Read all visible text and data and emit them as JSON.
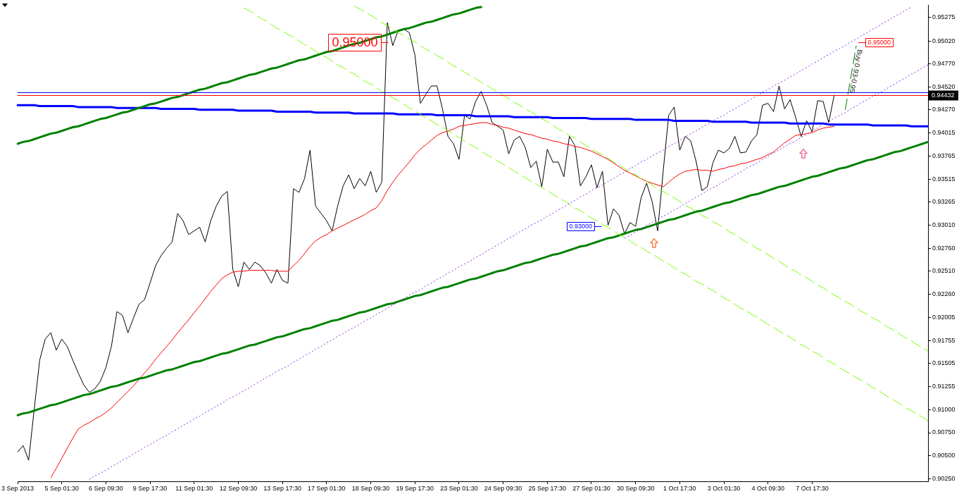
{
  "chart_data": {
    "type": "line",
    "marker": "none",
    "categories": [
      "3 Sep 2013",
      null,
      null,
      null,
      null,
      null,
      null,
      null,
      "5 Sep 01:30",
      null,
      null,
      null,
      null,
      null,
      null,
      null,
      "6 Sep 09:30",
      null,
      null,
      null,
      null,
      null,
      null,
      null,
      "9 Sep 17:30",
      null,
      null,
      null,
      null,
      null,
      null,
      null,
      "11 Sep 01:30",
      null,
      null,
      null,
      null,
      null,
      null,
      null,
      "12 Sep 09:30",
      null,
      null,
      null,
      null,
      null,
      null,
      null,
      "13 Sep 17:30",
      null,
      null,
      null,
      null,
      null,
      null,
      null,
      "17 Sep 01:30",
      null,
      null,
      null,
      null,
      null,
      null,
      null,
      "18 Sep 09:30",
      null,
      null,
      null,
      null,
      null,
      null,
      null,
      "19 Sep 17:30",
      null,
      null,
      null,
      null,
      null,
      null,
      null,
      "23 Sep 01:30",
      null,
      null,
      null,
      null,
      null,
      null,
      null,
      "24 Sep 09:30",
      null,
      null,
      null,
      null,
      null,
      null,
      null,
      "25 Sep 17:30",
      null,
      null,
      null,
      null,
      null,
      null,
      null,
      "27 Sep 01:30",
      null,
      null,
      null,
      null,
      null,
      null,
      null,
      "30 Sep 09:30",
      null,
      null,
      null,
      null,
      null,
      null,
      null,
      "1 Oct 17:30",
      null,
      null,
      null,
      null,
      null,
      null,
      null,
      "3 Oct 01:30",
      null,
      null,
      null,
      null,
      null,
      null,
      null,
      "4 Oct 09:30",
      null,
      null,
      null,
      null,
      null,
      null,
      null,
      "7 Oct 17:30",
      null,
      null,
      null,
      null,
      null,
      null,
      null,
      null,
      null,
      null,
      null,
      null,
      null,
      null,
      null,
      null,
      null,
      null,
      null,
      null,
      null
    ],
    "ylim": [
      0.9022,
      0.9541
    ],
    "yticks": [
      0.95275,
      {
        "value": 0.9502,
        "label": "0.95020"
      },
      {
        "value": 0.9477,
        "label": "0.94770"
      },
      {
        "value": 0.9452,
        "label": "0.94520"
      },
      {
        "value": 0.9427,
        "label": "0.94270"
      },
      0.94015,
      0.93765,
      0.93515,
      0.93265,
      {
        "value": 0.9301,
        "label": "0.93010"
      },
      {
        "value": 0.9276,
        "label": "0.92760"
      },
      {
        "value": 0.9251,
        "label": "0.92510"
      },
      {
        "value": 0.9226,
        "label": "0.92260"
      },
      0.92005,
      0.91755,
      0.91505,
      0.91255,
      {
        "value": 0.91,
        "label": "0.91000"
      },
      {
        "value": 0.9075,
        "label": "0.90750"
      },
      {
        "value": 0.905,
        "label": "0.90500"
      },
      {
        "value": 0.9025,
        "label": "0.90250"
      }
    ],
    "series": [
      {
        "color": "#000000",
        "values": [
          0.9054,
          0.9061,
          0.9045,
          0.91,
          0.9154,
          0.9177,
          0.9184,
          0.9165,
          0.9177,
          0.9169,
          0.9154,
          0.914,
          0.9127,
          0.9119,
          0.9123,
          0.9131,
          0.9146,
          0.9169,
          0.9207,
          0.9203,
          0.9184,
          0.92,
          0.9215,
          0.922,
          0.9238,
          0.9257,
          0.9268,
          0.9276,
          0.9283,
          0.9314,
          0.9306,
          0.9291,
          0.9295,
          0.9299,
          0.9283,
          0.9306,
          0.9322,
          0.9333,
          0.9338,
          0.9253,
          0.9234,
          0.9261,
          0.9253,
          0.9261,
          0.9257,
          0.9249,
          0.9238,
          0.9253,
          0.9241,
          0.9238,
          0.9341,
          0.9337,
          0.9352,
          0.9383,
          0.9322,
          0.9314,
          0.9306,
          0.9295,
          0.9322,
          0.9344,
          0.9356,
          0.9341,
          0.9352,
          0.9344,
          0.936,
          0.9337,
          0.9348,
          0.9522,
          0.9497,
          0.9514,
          0.9515,
          0.9511,
          0.9487,
          0.9434,
          0.9444,
          0.9453,
          0.9453,
          0.9428,
          0.9398,
          0.939,
          0.9373,
          0.9421,
          0.9417,
          0.9436,
          0.9447,
          0.9432,
          0.9413,
          0.9409,
          0.9405,
          0.9379,
          0.9394,
          0.9398,
          0.9386,
          0.9364,
          0.9371,
          0.9343,
          0.9384,
          0.937,
          0.937,
          0.9354,
          0.9398,
          0.9388,
          0.9344,
          0.9354,
          0.9367,
          0.9342,
          0.936,
          0.9301,
          0.9319,
          0.9312,
          0.9292,
          0.9304,
          0.93,
          0.9331,
          0.9347,
          0.9327,
          0.9295,
          0.936,
          0.9421,
          0.943,
          0.9383,
          0.9398,
          0.9393,
          0.937,
          0.9339,
          0.9343,
          0.9369,
          0.9383,
          0.938,
          0.9385,
          0.9398,
          0.938,
          0.9381,
          0.9393,
          0.94,
          0.9432,
          0.9434,
          0.9425,
          0.9453,
          0.9428,
          0.9438,
          0.9419,
          0.9398,
          0.9415,
          0.9403,
          0.9437,
          0.9436,
          0.9413,
          0.9443,
          null,
          null,
          null,
          null,
          null,
          null,
          null,
          null,
          null,
          null,
          null,
          null,
          null,
          null,
          null,
          null,
          null
        ]
      },
      {
        "color": "#ff0000",
        "values": [
          null,
          null,
          null,
          null,
          null,
          null,
          0.9026,
          0.9036,
          0.9047,
          0.9058,
          0.9069,
          0.9079,
          0.9083,
          0.9086,
          0.909,
          0.9093,
          0.9097,
          0.9102,
          0.9108,
          0.9114,
          0.912,
          0.9126,
          0.9133,
          0.914,
          0.9147,
          0.9155,
          0.9162,
          0.9169,
          0.9176,
          0.9184,
          0.9191,
          0.9198,
          0.9206,
          0.9213,
          0.9221,
          0.9229,
          0.9236,
          0.9243,
          0.9247,
          0.925,
          0.9251,
          0.9251,
          0.9252,
          0.9252,
          0.9252,
          0.9252,
          0.9252,
          0.9251,
          0.9251,
          0.9251,
          0.9257,
          0.9263,
          0.927,
          0.9278,
          0.9284,
          0.9288,
          0.9291,
          0.9295,
          0.9298,
          0.9301,
          0.9304,
          0.9307,
          0.931,
          0.9313,
          0.9317,
          0.932,
          0.9328,
          0.9339,
          0.9348,
          0.9356,
          0.9363,
          0.937,
          0.9378,
          0.9384,
          0.9389,
          0.9394,
          0.9399,
          0.9402,
          0.9404,
          0.9406,
          0.9409,
          0.941,
          0.9411,
          0.9412,
          0.9413,
          0.9413,
          0.9411,
          0.941,
          0.9408,
          0.9407,
          0.9405,
          0.9403,
          0.9401,
          0.94,
          0.9398,
          0.9396,
          0.9395,
          0.9393,
          0.9392,
          0.939,
          0.9389,
          0.9387,
          0.9386,
          0.9384,
          0.9382,
          0.9379,
          0.9376,
          0.9373,
          0.9369,
          0.9365,
          0.9361,
          0.9358,
          0.9355,
          0.9352,
          0.9349,
          0.9347,
          0.9345,
          0.9343,
          0.9348,
          0.9353,
          0.9357,
          0.936,
          0.9361,
          0.9362,
          0.9361,
          0.9361,
          0.936,
          0.9362,
          0.9363,
          0.9365,
          0.9366,
          0.9368,
          0.9369,
          0.9371,
          0.9373,
          0.9375,
          0.9378,
          0.9381,
          0.9386,
          0.9391,
          0.9395,
          0.9399,
          0.94,
          0.9401,
          0.9402,
          0.9405,
          0.9407,
          0.9408,
          0.9409,
          null,
          null,
          null,
          null,
          null,
          null,
          null,
          null,
          null,
          null,
          null,
          null,
          null,
          null,
          null,
          null,
          null
        ]
      },
      {
        "type": "line",
        "color": "#0000ff",
        "values": [
          0.9432,
          0.9432,
          0.9432,
          0.9432,
          0.9431,
          0.9431,
          0.9431,
          0.9431,
          0.9431,
          0.9431,
          0.9431,
          0.943,
          0.943,
          0.943,
          0.943,
          0.943,
          0.943,
          0.943,
          0.9429,
          0.9429,
          0.9429,
          0.9429,
          0.9429,
          0.9429,
          0.9429,
          0.9429,
          0.9428,
          0.9428,
          0.9428,
          0.9428,
          0.9428,
          0.9428,
          0.9428,
          0.9427,
          0.9427,
          0.9427,
          0.9427,
          0.9427,
          0.9427,
          0.9427,
          0.9426,
          0.9426,
          0.9426,
          0.9426,
          0.9426,
          0.9426,
          0.9426,
          0.9425,
          0.9425,
          0.9425,
          0.9425,
          0.9425,
          0.9425,
          0.9425,
          0.9424,
          0.9424,
          0.9424,
          0.9424,
          0.9424,
          0.9424,
          0.9424,
          0.9423,
          0.9423,
          0.9423,
          0.9423,
          0.9423,
          0.9423,
          0.9423,
          0.9423,
          0.9422,
          0.9422,
          0.9422,
          0.9422,
          0.9422,
          0.9422,
          0.9422,
          0.9421,
          0.9421,
          0.9421,
          0.9421,
          0.9421,
          0.9421,
          0.9421,
          0.942,
          0.942,
          0.942,
          0.942,
          0.942,
          0.942,
          0.942,
          0.9419,
          0.9419,
          0.9419,
          0.9419,
          0.9419,
          0.9419,
          0.9419,
          0.9418,
          0.9418,
          0.9418,
          0.9418,
          0.9418,
          0.9418,
          0.9418,
          0.9417,
          0.9417,
          0.9417,
          0.9417,
          0.9417,
          0.9417,
          0.9417,
          0.9417,
          0.9416,
          0.9416,
          0.9416,
          0.9416,
          0.9416,
          0.9416,
          0.9416,
          0.9415,
          0.9415,
          0.9415,
          0.9415,
          0.9415,
          0.9415,
          0.9415,
          0.9414,
          0.9414,
          0.9414,
          0.9414,
          0.9414,
          0.9414,
          0.9414,
          0.9413,
          0.9413,
          0.9413,
          0.9413,
          0.9413,
          0.9413,
          0.9413,
          0.9412,
          0.9412,
          0.9412,
          0.9412,
          0.9412,
          0.9412,
          0.9412,
          0.9411,
          0.9411,
          0.9411,
          0.9411,
          0.9411,
          0.9411,
          0.9411,
          0.9411,
          0.941,
          0.941,
          0.941,
          0.941,
          0.941,
          0.941,
          0.941,
          0.9409,
          0.9409,
          0.9409,
          0.9409
        ]
      },
      {
        "type": "line",
        "color": "#008000",
        "values": [
          0.939,
          0.9392,
          0.9393,
          0.9395,
          0.9397,
          0.9399,
          0.9401,
          0.9402,
          0.9404,
          0.9406,
          0.9408,
          0.9409,
          0.9411,
          0.9413,
          0.9415,
          0.9417,
          0.9418,
          0.942,
          0.9422,
          0.9424,
          0.9425,
          0.9427,
          0.9429,
          0.9431,
          0.9433,
          0.9434,
          0.9436,
          0.9438,
          0.944,
          0.9441,
          0.9443,
          0.9445,
          0.9447,
          0.9449,
          0.945,
          0.9452,
          0.9454,
          0.9456,
          0.9457,
          0.9459,
          0.9461,
          0.9463,
          0.9465,
          0.9466,
          0.9468,
          0.947,
          0.9472,
          0.9473,
          0.9475,
          0.9477,
          0.9479,
          0.9481,
          0.9482,
          0.9484,
          0.9486,
          0.9488,
          0.949,
          0.9491,
          0.9493,
          0.9495,
          0.9497,
          0.9499,
          0.95,
          0.9502,
          0.9504,
          0.9506,
          0.9507,
          0.9509,
          0.9511,
          0.9513,
          0.9515,
          0.9516,
          0.9518,
          0.952,
          0.9522,
          0.9523,
          0.9525,
          0.9527,
          0.9529,
          0.9531,
          0.9532,
          0.9534,
          0.9536,
          0.9538,
          0.9539,
          null,
          null,
          null,
          null,
          null,
          null,
          null,
          null,
          null,
          null,
          null,
          null,
          null,
          null,
          null,
          null,
          null,
          null,
          null,
          null,
          null,
          null,
          null,
          null,
          null,
          null,
          null,
          null,
          null,
          null,
          null,
          null,
          null,
          null,
          null,
          null,
          null,
          null,
          null,
          null,
          null,
          null,
          null,
          null,
          null,
          null,
          null,
          null,
          null,
          null,
          null,
          null,
          null,
          null,
          null,
          null,
          null,
          null,
          null,
          null,
          null,
          null,
          null,
          null,
          null,
          null,
          null,
          null,
          null,
          null,
          null,
          null,
          null,
          null,
          null,
          null,
          null,
          null,
          null,
          null,
          null
        ]
      },
      {
        "type": "line",
        "color": "#008000",
        "values": [
          0.9094,
          0.9096,
          0.9097,
          0.9099,
          0.9101,
          0.9103,
          0.9105,
          0.9106,
          0.9108,
          0.911,
          0.9112,
          0.9114,
          0.9116,
          0.9117,
          0.9119,
          0.9121,
          0.9123,
          0.9125,
          0.9126,
          0.9128,
          0.913,
          0.9132,
          0.9134,
          0.9135,
          0.9137,
          0.9139,
          0.9141,
          0.9143,
          0.9144,
          0.9146,
          0.9148,
          0.915,
          0.9152,
          0.9153,
          0.9155,
          0.9157,
          0.9159,
          0.9161,
          0.9162,
          0.9164,
          0.9166,
          0.9168,
          0.917,
          0.9171,
          0.9173,
          0.9175,
          0.9177,
          0.9179,
          0.918,
          0.9182,
          0.9184,
          0.9186,
          0.9188,
          0.9189,
          0.9191,
          0.9193,
          0.9195,
          0.9197,
          0.9198,
          0.92,
          0.9202,
          0.9204,
          0.9206,
          0.9207,
          0.9209,
          0.9211,
          0.9213,
          0.9215,
          0.9216,
          0.9218,
          0.922,
          0.9222,
          0.9224,
          0.9225,
          0.9227,
          0.9229,
          0.9231,
          0.9233,
          0.9234,
          0.9236,
          0.9238,
          0.924,
          0.9242,
          0.9243,
          0.9245,
          0.9247,
          0.9249,
          0.9251,
          0.9252,
          0.9254,
          0.9256,
          0.9258,
          0.926,
          0.9261,
          0.9263,
          0.9265,
          0.9267,
          0.9269,
          0.927,
          0.9272,
          0.9274,
          0.9276,
          0.9278,
          0.9279,
          0.9281,
          0.9283,
          0.9285,
          0.9287,
          0.9288,
          0.929,
          0.9292,
          0.9294,
          0.9296,
          0.9297,
          0.9299,
          0.9301,
          0.9303,
          0.9305,
          0.9307,
          0.9308,
          0.931,
          0.9312,
          0.9314,
          0.9316,
          0.9317,
          0.9319,
          0.9321,
          0.9323,
          0.9325,
          0.9326,
          0.9328,
          0.933,
          0.9332,
          0.9334,
          0.9335,
          0.9337,
          0.9339,
          0.9341,
          0.9343,
          0.9344,
          0.9346,
          0.9348,
          0.935,
          0.9352,
          0.9354,
          0.9355,
          0.9357,
          0.9359,
          0.9361,
          0.9363,
          0.9364,
          0.9366,
          0.9368,
          0.937,
          0.9372,
          0.9373,
          0.9375,
          0.9377,
          0.9379,
          0.9381,
          0.9382,
          0.9384,
          0.9386,
          0.9388,
          0.939,
          0.9392
        ]
      },
      {
        "type": "line",
        "color": "#7cfc00",
        "line_style": "dashed",
        "values": [
          null,
          null,
          null,
          null,
          null,
          null,
          null,
          null,
          null,
          null,
          null,
          null,
          null,
          null,
          null,
          null,
          null,
          null,
          null,
          null,
          null,
          null,
          null,
          null,
          null,
          null,
          null,
          null,
          null,
          null,
          null,
          null,
          null,
          null,
          null,
          null,
          null,
          null,
          null,
          null,
          null,
          null,
          null,
          null,
          null,
          null,
          null,
          null,
          null,
          null,
          null,
          null,
          null,
          null,
          null,
          null,
          null,
          null,
          null,
          null,
          null,
          0.954,
          0.9537,
          0.9533,
          0.953,
          0.9526,
          0.9522,
          0.9519,
          0.9515,
          0.9511,
          0.9508,
          0.9504,
          0.9501,
          0.9497,
          0.9493,
          0.949,
          0.9486,
          0.9483,
          0.9479,
          0.9475,
          0.9472,
          0.9468,
          0.9464,
          0.9461,
          0.9457,
          0.9454,
          0.945,
          0.9446,
          0.9443,
          0.9439,
          0.9435,
          0.9432,
          0.9428,
          0.9425,
          0.9421,
          0.9417,
          0.9414,
          0.941,
          0.9406,
          0.9403,
          0.9399,
          0.9396,
          0.9392,
          0.9388,
          0.9385,
          0.9381,
          0.9378,
          0.9374,
          0.937,
          0.9367,
          0.9363,
          0.9359,
          0.9356,
          0.9352,
          0.9349,
          0.9345,
          0.9341,
          0.9338,
          0.9334,
          0.9331,
          0.9327,
          0.9323,
          0.932,
          0.9316,
          0.9312,
          0.9309,
          0.9305,
          0.9302,
          0.9298,
          0.9294,
          0.9291,
          0.9287,
          0.9283,
          0.928,
          0.9276,
          0.9273,
          0.9269,
          0.9265,
          0.9262,
          0.9258,
          0.9254,
          0.9251,
          0.9247,
          0.9244,
          0.924,
          0.9236,
          0.9233,
          0.9229,
          0.9225,
          0.9222,
          0.9218,
          0.9215,
          0.9211,
          0.9207,
          0.9204,
          0.92,
          0.9197,
          0.9193,
          0.9189,
          0.9186,
          0.9182,
          0.9178,
          0.9175,
          0.9171,
          0.9168,
          0.9164
        ]
      },
      {
        "type": "line",
        "color": "#7cfc00",
        "line_style": "dashed",
        "values": [
          null,
          null,
          null,
          null,
          null,
          null,
          null,
          null,
          null,
          null,
          null,
          null,
          null,
          null,
          null,
          null,
          null,
          null,
          null,
          null,
          null,
          null,
          null,
          null,
          null,
          null,
          null,
          null,
          null,
          null,
          null,
          null,
          null,
          null,
          null,
          null,
          null,
          null,
          null,
          null,
          null,
          0.9538,
          0.9535,
          0.9531,
          0.9527,
          0.9524,
          0.952,
          0.9516,
          0.9513,
          0.9509,
          0.9506,
          0.9502,
          0.9498,
          0.9495,
          0.9491,
          0.9487,
          0.9484,
          0.948,
          0.9476,
          0.9473,
          0.9469,
          0.9466,
          0.9462,
          0.9458,
          0.9455,
          0.9451,
          0.9447,
          0.9444,
          0.944,
          0.9437,
          0.9433,
          0.9429,
          0.9426,
          0.9422,
          0.9418,
          0.9415,
          0.9411,
          0.9408,
          0.9404,
          0.94,
          0.9397,
          0.9393,
          0.9389,
          0.9386,
          0.9382,
          0.9378,
          0.9375,
          0.9371,
          0.9368,
          0.9364,
          0.936,
          0.9357,
          0.9353,
          0.9349,
          0.9346,
          0.9342,
          0.9339,
          0.9335,
          0.9331,
          0.9328,
          0.9324,
          0.932,
          0.9317,
          0.9313,
          0.9309,
          0.9306,
          0.9302,
          0.9299,
          0.9295,
          0.9291,
          0.9288,
          0.9284,
          0.928,
          0.9277,
          0.9273,
          0.927,
          0.9266,
          0.9262,
          0.9259,
          0.9255,
          0.9251,
          0.9248,
          0.9244,
          0.924,
          0.9237,
          0.9233,
          0.923,
          0.9226,
          0.9222,
          0.9219,
          0.9215,
          0.9211,
          0.9208,
          0.9204,
          0.9201,
          0.9197,
          0.9193,
          0.919,
          0.9186,
          0.9182,
          0.9179,
          0.9175,
          0.9171,
          0.9168,
          0.9164,
          0.9161,
          0.9157,
          0.9153,
          0.915,
          0.9146,
          0.9142,
          0.9139,
          0.9135,
          0.9132,
          0.9128,
          0.9124,
          0.9121,
          0.9117,
          0.9113,
          0.911,
          0.9106,
          0.9102,
          0.9099,
          0.9095,
          0.9092,
          0.9088
        ]
      },
      {
        "type": "line",
        "color": "#8a2be2",
        "line_style": "dotted",
        "values": [
          null,
          null,
          null,
          null,
          null,
          null,
          null,
          null,
          null,
          null,
          null,
          null,
          null,
          0.9024,
          0.9028,
          0.9031,
          0.9034,
          0.9038,
          0.9041,
          0.9045,
          0.9048,
          0.9052,
          0.9055,
          0.9059,
          0.9062,
          0.9066,
          0.9069,
          0.9072,
          0.9076,
          0.9079,
          0.9083,
          0.9086,
          0.909,
          0.9093,
          0.9097,
          0.91,
          0.9104,
          0.9107,
          0.9111,
          0.9114,
          0.9117,
          0.9121,
          0.9124,
          0.9128,
          0.9131,
          0.9135,
          0.9138,
          0.9142,
          0.9145,
          0.9148,
          0.9152,
          0.9155,
          0.9159,
          0.9162,
          0.9166,
          0.9169,
          0.9173,
          0.9176,
          0.918,
          0.9183,
          0.9187,
          0.919,
          0.9193,
          0.9197,
          0.92,
          0.9204,
          0.9207,
          0.9211,
          0.9214,
          0.9218,
          0.9221,
          0.9225,
          0.9228,
          0.9231,
          0.9235,
          0.9238,
          0.9242,
          0.9245,
          0.9249,
          0.9252,
          0.9256,
          0.9259,
          0.9262,
          0.9266,
          0.9269,
          0.9273,
          0.9276,
          0.928,
          0.9283,
          0.9287,
          0.929,
          0.9294,
          0.9297,
          0.9301,
          0.9304,
          0.9307,
          0.9311,
          0.9314,
          0.9318,
          0.9321,
          0.9325,
          0.9328,
          0.9332,
          0.9335,
          0.9339,
          0.9342,
          0.9345,
          0.9349,
          0.9352,
          0.9356,
          0.9359,
          0.9363,
          0.9366,
          0.937,
          0.9373,
          0.9377,
          0.938,
          0.9383,
          0.9387,
          0.939,
          0.9394,
          0.9397,
          0.9401,
          0.9404,
          0.9408,
          0.9411,
          0.9415,
          0.9418,
          0.9421,
          0.9425,
          0.9428,
          0.9432,
          0.9435,
          0.9439,
          0.9442,
          0.9446,
          0.9449,
          0.9453,
          0.9456,
          0.9459,
          0.9463,
          0.9466,
          0.947,
          0.9473,
          0.9477,
          0.948,
          0.9484,
          0.9487,
          0.9491,
          0.9494,
          0.9497,
          0.9501,
          0.9504,
          0.9508,
          0.9511,
          0.9515,
          0.9518,
          0.9522,
          0.9525,
          0.9529,
          0.9532,
          0.9536,
          0.9539,
          null,
          null,
          null
        ]
      },
      {
        "type": "line",
        "color": "#8a2be2",
        "line_style": "dotted",
        "values": [
          null,
          null,
          null,
          null,
          null,
          null,
          null,
          null,
          null,
          null,
          null,
          null,
          null,
          null,
          null,
          null,
          null,
          null,
          null,
          null,
          null,
          null,
          null,
          null,
          null,
          null,
          null,
          null,
          null,
          null,
          null,
          null,
          null,
          null,
          null,
          null,
          null,
          null,
          null,
          null,
          null,
          null,
          null,
          null,
          null,
          null,
          null,
          null,
          null,
          null,
          null,
          null,
          null,
          null,
          null,
          null,
          null,
          null,
          null,
          null,
          null,
          null,
          null,
          null,
          null,
          null,
          null,
          null,
          null,
          null,
          null,
          null,
          null,
          null,
          null,
          null,
          null,
          null,
          null,
          null,
          null,
          null,
          null,
          null,
          null,
          null,
          null,
          null,
          null,
          null,
          null,
          null,
          null,
          null,
          null,
          null,
          null,
          null,
          null,
          null,
          null,
          null,
          null,
          null,
          null,
          null,
          null,
          null,
          null,
          null,
          0.9287,
          0.929,
          0.9294,
          0.9297,
          0.9301,
          0.9304,
          0.9308,
          0.9311,
          0.9314,
          0.9318,
          0.9321,
          0.9325,
          0.9328,
          0.9332,
          0.9335,
          0.9339,
          0.9342,
          0.9345,
          0.9349,
          0.9352,
          0.9356,
          0.9359,
          0.9363,
          0.9366,
          0.9369,
          0.9373,
          0.9376,
          0.938,
          0.9383,
          0.9387,
          0.939,
          0.9393,
          0.9397,
          0.94,
          0.9404,
          0.9407,
          0.9411,
          0.9414,
          0.9418,
          0.9421,
          0.9424,
          0.9428,
          0.9431,
          0.9435,
          0.9438,
          0.9442,
          0.9445,
          0.9448,
          0.9452,
          0.9455,
          0.9459,
          0.9462,
          0.9466,
          0.9469,
          0.9473,
          0.9476
        ]
      },
      {
        "type": "line",
        "color": "#008000",
        "line_style": "dashed",
        "values": [
          null,
          null,
          null,
          null,
          null,
          null,
          null,
          null,
          null,
          null,
          null,
          null,
          null,
          null,
          null,
          null,
          null,
          null,
          null,
          null,
          null,
          null,
          null,
          null,
          null,
          null,
          null,
          null,
          null,
          null,
          null,
          null,
          null,
          null,
          null,
          null,
          null,
          null,
          null,
          null,
          null,
          null,
          null,
          null,
          null,
          null,
          null,
          null,
          null,
          null,
          null,
          null,
          null,
          null,
          null,
          null,
          null,
          null,
          null,
          null,
          null,
          null,
          null,
          null,
          null,
          null,
          null,
          null,
          null,
          null,
          null,
          null,
          null,
          null,
          null,
          null,
          null,
          null,
          null,
          null,
          null,
          null,
          null,
          null,
          null,
          null,
          null,
          null,
          null,
          null,
          null,
          null,
          null,
          null,
          null,
          null,
          null,
          null,
          null,
          null,
          null,
          null,
          null,
          null,
          null,
          null,
          null,
          null,
          null,
          null,
          null,
          null,
          null,
          null,
          null,
          null,
          null,
          null,
          null,
          null,
          null,
          null,
          null,
          null,
          null,
          null,
          null,
          null,
          null,
          null,
          null,
          null,
          null,
          null,
          null,
          null,
          null,
          null,
          null,
          null,
          null,
          null,
          null,
          null,
          null,
          null,
          null,
          null,
          null,
          null,
          0.9427,
          0.9462,
          0.9497,
          null,
          null,
          null,
          null,
          null,
          null,
          null,
          null,
          null,
          null,
          null,
          null,
          null
        ]
      }
    ],
    "ref_lines": [
      {
        "axis": "y",
        "value": 0.9446,
        "color": "#0000ff"
      },
      {
        "axis": "y",
        "value": 0.94432,
        "label": "0.94432",
        "color": "#ff0000"
      }
    ],
    "annotations": [
      "0.95000",
      "0.95000",
      "0.93000",
      "Buy 0.93-0.95"
    ]
  }
}
